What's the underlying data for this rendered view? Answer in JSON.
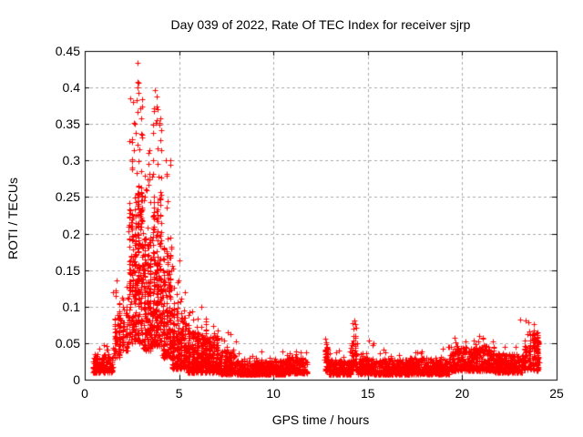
{
  "chart_data": {
    "type": "scatter",
    "title": "Day 039 of 2022, Rate Of TEC Index for receiver sjrp",
    "xlabel": "GPS time / hours",
    "ylabel": "ROTI / TECUs",
    "xlim": [
      0,
      25
    ],
    "ylim": [
      0,
      0.45
    ],
    "xticks": {
      "values": [
        0,
        5,
        10,
        15,
        20,
        25
      ],
      "labels": [
        "0",
        "5",
        "10",
        "15",
        "20",
        "25"
      ]
    },
    "yticks": {
      "values": [
        0,
        0.05,
        0.1,
        0.15,
        0.2,
        0.25,
        0.3,
        0.35,
        0.4,
        0.45
      ],
      "labels": [
        "0",
        "0.05",
        "0.1",
        "0.15",
        "0.2",
        "0.25",
        "0.3",
        "0.35",
        "0.4",
        "0.45"
      ]
    },
    "grid": true,
    "legend": "none",
    "colors": {
      "marker": "#ff0000",
      "grid": "#a8a8a8",
      "axis": "#000000",
      "background": "#ffffff"
    },
    "series": [
      {
        "name": "ROTI",
        "marker": "plus",
        "marker_size_px": 7,
        "color": "#ff0000",
        "seed": 42,
        "data_gap_hours": [
          11.8,
          12.68
        ],
        "max_point": {
          "x": 2.8,
          "y": 0.434
        },
        "peak_points": [
          [
            2.8,
            0.434
          ],
          [
            2.78,
            0.4
          ],
          [
            2.87,
            0.393
          ],
          [
            2.76,
            0.383
          ],
          [
            2.95,
            0.372
          ],
          [
            2.63,
            0.352
          ],
          [
            2.7,
            0.338
          ],
          [
            3.02,
            0.332
          ],
          [
            2.42,
            0.385
          ],
          [
            2.55,
            0.38
          ],
          [
            3.73,
            0.396
          ],
          [
            3.83,
            0.388
          ],
          [
            3.68,
            0.372
          ],
          [
            3.94,
            0.352
          ],
          [
            3.6,
            0.338
          ],
          [
            4.03,
            0.342
          ],
          [
            4.28,
            0.3
          ],
          [
            4.36,
            0.282
          ],
          [
            5.02,
            0.163
          ],
          [
            1.7,
            0.136
          ],
          [
            1.64,
            0.122
          ],
          [
            14.27,
            0.081
          ],
          [
            14.32,
            0.076
          ],
          [
            14.22,
            0.07
          ],
          [
            23.07,
            0.082
          ],
          [
            23.35,
            0.081
          ],
          [
            23.5,
            0.078
          ],
          [
            23.78,
            0.076
          ],
          [
            15.05,
            0.054
          ],
          [
            12.75,
            0.056
          ]
        ],
        "distribution_clusters": [
          {
            "x0": 0.42,
            "x1": 1.5,
            "n": 150,
            "y0": 0.01,
            "y1": 0.035,
            "p": 1.6,
            "cols": 0,
            "t0": 0.035,
            "t1": 0.048,
            "tn": 6
          },
          {
            "x0": 1.5,
            "x1": 1.95,
            "n": 70,
            "y0": 0.03,
            "y1": 0.095,
            "p": 1.2,
            "cols": 2,
            "t0": 0.1,
            "t1": 0.135,
            "tn": 5
          },
          {
            "x0": 1.95,
            "x1": 2.3,
            "n": 45,
            "y0": 0.04,
            "y1": 0.1,
            "p": 1.3,
            "cols": 2,
            "t0": 0.1,
            "t1": 0.13,
            "tn": 4
          },
          {
            "x0": 2.3,
            "x1": 2.75,
            "n": 150,
            "y0": 0.05,
            "y1": 0.23,
            "p": 1.3,
            "cols": 3,
            "t0": 0.23,
            "t1": 0.36,
            "tn": 16
          },
          {
            "x0": 2.75,
            "x1": 3.1,
            "n": 140,
            "y0": 0.05,
            "y1": 0.26,
            "p": 1.2,
            "cols": 2,
            "t0": 0.26,
            "t1": 0.41,
            "tn": 16
          },
          {
            "x0": 3.1,
            "x1": 3.55,
            "n": 160,
            "y0": 0.04,
            "y1": 0.2,
            "p": 1.4,
            "cols": 3,
            "t0": 0.2,
            "t1": 0.32,
            "tn": 14
          },
          {
            "x0": 3.55,
            "x1": 4.1,
            "n": 200,
            "y0": 0.045,
            "y1": 0.25,
            "p": 1.3,
            "cols": 3,
            "t0": 0.25,
            "t1": 0.395,
            "tn": 20
          },
          {
            "x0": 4.1,
            "x1": 4.6,
            "n": 150,
            "y0": 0.03,
            "y1": 0.18,
            "p": 1.5,
            "cols": 3,
            "t0": 0.18,
            "t1": 0.3,
            "tn": 10
          },
          {
            "x0": 4.6,
            "x1": 5.4,
            "n": 210,
            "y0": 0.015,
            "y1": 0.095,
            "p": 1.6,
            "cols": 4,
            "t0": 0.095,
            "t1": 0.165,
            "tn": 14
          },
          {
            "x0": 5.4,
            "x1": 6.3,
            "n": 230,
            "y0": 0.01,
            "y1": 0.065,
            "p": 1.7,
            "cols": 4,
            "t0": 0.065,
            "t1": 0.115,
            "tn": 14
          },
          {
            "x0": 6.3,
            "x1": 7.1,
            "n": 230,
            "y0": 0.01,
            "y1": 0.058,
            "p": 1.7,
            "cols": 4,
            "t0": 0.058,
            "t1": 0.085,
            "tn": 10
          },
          {
            "x0": 7.1,
            "x1": 8.0,
            "n": 190,
            "y0": 0.008,
            "y1": 0.04,
            "p": 1.8,
            "cols": 0,
            "t0": 0.04,
            "t1": 0.068,
            "tn": 8
          },
          {
            "x0": 8.0,
            "x1": 9.2,
            "n": 210,
            "y0": 0.007,
            "y1": 0.026,
            "p": 1.8,
            "cols": 0,
            "t0": 0.026,
            "t1": 0.038,
            "tn": 6
          },
          {
            "x0": 9.2,
            "x1": 10.6,
            "n": 230,
            "y0": 0.007,
            "y1": 0.026,
            "p": 1.8,
            "cols": 0,
            "t0": 0.026,
            "t1": 0.04,
            "tn": 6
          },
          {
            "x0": 10.6,
            "x1": 11.8,
            "n": 170,
            "y0": 0.009,
            "y1": 0.032,
            "p": 1.7,
            "cols": 0,
            "t0": 0.032,
            "t1": 0.048,
            "tn": 6
          },
          {
            "x0": 12.68,
            "x1": 12.95,
            "n": 55,
            "y0": 0.012,
            "y1": 0.042,
            "p": 1.4,
            "cols": 1,
            "t0": 0.042,
            "t1": 0.057,
            "tn": 5
          },
          {
            "x0": 12.95,
            "x1": 14.1,
            "n": 210,
            "y0": 0.007,
            "y1": 0.027,
            "p": 1.8,
            "cols": 0,
            "t0": 0.027,
            "t1": 0.04,
            "tn": 6
          },
          {
            "x0": 14.1,
            "x1": 14.45,
            "n": 55,
            "y0": 0.012,
            "y1": 0.05,
            "p": 1.4,
            "cols": 2,
            "t0": 0.05,
            "t1": 0.078,
            "tn": 7
          },
          {
            "x0": 14.45,
            "x1": 15.3,
            "n": 140,
            "y0": 0.008,
            "y1": 0.03,
            "p": 1.7,
            "cols": 0,
            "t0": 0.03,
            "t1": 0.052,
            "tn": 6
          },
          {
            "x0": 15.3,
            "x1": 17.2,
            "n": 310,
            "y0": 0.007,
            "y1": 0.028,
            "p": 1.8,
            "cols": 0,
            "t0": 0.028,
            "t1": 0.042,
            "tn": 8
          },
          {
            "x0": 17.2,
            "x1": 19.3,
            "n": 330,
            "y0": 0.008,
            "y1": 0.03,
            "p": 1.8,
            "cols": 0,
            "t0": 0.03,
            "t1": 0.046,
            "tn": 8
          },
          {
            "x0": 19.3,
            "x1": 21.7,
            "n": 390,
            "y0": 0.012,
            "y1": 0.046,
            "p": 1.6,
            "cols": 0,
            "t0": 0.046,
            "t1": 0.06,
            "tn": 12
          },
          {
            "x0": 21.7,
            "x1": 23.2,
            "n": 230,
            "y0": 0.01,
            "y1": 0.035,
            "p": 1.7,
            "cols": 0,
            "t0": 0.035,
            "t1": 0.048,
            "tn": 6
          },
          {
            "x0": 23.2,
            "x1": 23.7,
            "n": 60,
            "y0": 0.014,
            "y1": 0.05,
            "p": 1.5,
            "cols": 2,
            "t0": 0.05,
            "t1": 0.07,
            "tn": 5
          },
          {
            "x0": 23.7,
            "x1": 24.08,
            "n": 95,
            "y0": 0.012,
            "y1": 0.062,
            "p": 1.3,
            "cols": 2,
            "t0": 0.062,
            "t1": 0.075,
            "tn": 5
          }
        ]
      }
    ]
  }
}
